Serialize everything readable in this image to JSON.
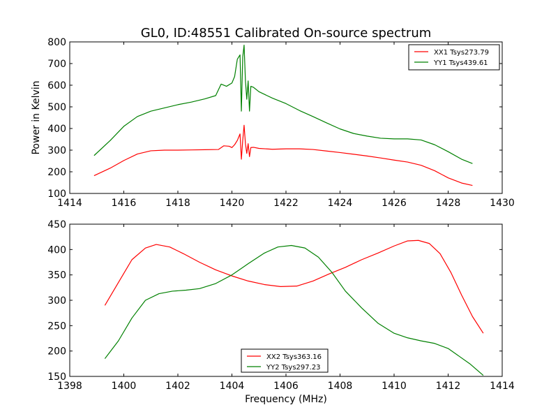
{
  "figure": {
    "title": "GL0, ID:48551 Calibrated On-source spectrum"
  },
  "chart_data": [
    {
      "type": "line",
      "title": "GL0, ID:48551 Calibrated On-source spectrum",
      "xlabel": "",
      "ylabel": "Power in Kelvin",
      "xlim": [
        1414,
        1430
      ],
      "ylim": [
        100,
        800
      ],
      "xticks": [
        1414,
        1416,
        1418,
        1420,
        1422,
        1424,
        1426,
        1428,
        1430
      ],
      "yticks": [
        100,
        200,
        300,
        400,
        500,
        600,
        700,
        800
      ],
      "legend_position": "top-right",
      "grid": false,
      "series": [
        {
          "name": "XX1 Tsys273.79",
          "color": "#ff0000",
          "x": [
            1414.9,
            1415.5,
            1416.0,
            1416.5,
            1417.0,
            1417.5,
            1418.0,
            1418.5,
            1419.0,
            1419.5,
            1419.7,
            1419.9,
            1420.0,
            1420.1,
            1420.2,
            1420.3,
            1420.35,
            1420.4,
            1420.45,
            1420.5,
            1420.55,
            1420.6,
            1420.65,
            1420.7,
            1420.8,
            1421.0,
            1421.5,
            1422.0,
            1422.5,
            1423.0,
            1423.5,
            1424.0,
            1424.5,
            1425.0,
            1425.5,
            1426.0,
            1426.5,
            1427.0,
            1427.5,
            1428.0,
            1428.5,
            1428.9
          ],
          "values": [
            182,
            217,
            252,
            282,
            297,
            300,
            300,
            301,
            302,
            303,
            320,
            318,
            312,
            325,
            345,
            375,
            258,
            345,
            415,
            330,
            285,
            330,
            270,
            312,
            313,
            308,
            304,
            306,
            306,
            303,
            296,
            289,
            281,
            273,
            264,
            254,
            245,
            230,
            205,
            172,
            148,
            137
          ]
        },
        {
          "name": "YY1 Tsys439.61",
          "color": "#008000",
          "x": [
            1414.9,
            1415.5,
            1416.0,
            1416.5,
            1417.0,
            1417.5,
            1418.0,
            1418.5,
            1419.0,
            1419.4,
            1419.6,
            1419.8,
            1420.0,
            1420.1,
            1420.2,
            1420.3,
            1420.35,
            1420.4,
            1420.45,
            1420.5,
            1420.55,
            1420.6,
            1420.65,
            1420.7,
            1420.8,
            1421.0,
            1421.5,
            1422.0,
            1422.5,
            1423.0,
            1423.5,
            1424.0,
            1424.5,
            1425.0,
            1425.5,
            1426.0,
            1426.5,
            1427.0,
            1427.5,
            1428.0,
            1428.5,
            1428.9
          ],
          "values": [
            275,
            345,
            410,
            455,
            480,
            495,
            510,
            522,
            537,
            552,
            605,
            595,
            610,
            640,
            720,
            740,
            480,
            730,
            785,
            620,
            535,
            620,
            480,
            595,
            590,
            570,
            540,
            515,
            483,
            455,
            426,
            398,
            377,
            365,
            355,
            352,
            352,
            347,
            325,
            293,
            258,
            238
          ]
        }
      ]
    },
    {
      "type": "line",
      "xlabel": "Frequency (MHz)",
      "ylabel": "",
      "xlim": [
        1398,
        1414
      ],
      "ylim": [
        150,
        450
      ],
      "xticks": [
        1398,
        1400,
        1402,
        1404,
        1406,
        1408,
        1410,
        1412,
        1414
      ],
      "yticks": [
        150,
        200,
        250,
        300,
        350,
        400,
        450
      ],
      "legend_position": "bottom-center",
      "grid": false,
      "series": [
        {
          "name": "XX2 Tsys363.16",
          "color": "#ff0000",
          "x": [
            1399.3,
            1399.8,
            1400.3,
            1400.8,
            1401.2,
            1401.7,
            1402.2,
            1402.8,
            1403.4,
            1404.0,
            1404.6,
            1405.2,
            1405.8,
            1406.4,
            1407.0,
            1407.6,
            1408.2,
            1408.8,
            1409.4,
            1410.0,
            1410.5,
            1410.9,
            1411.3,
            1411.7,
            1412.1,
            1412.5,
            1412.9,
            1413.3
          ],
          "values": [
            290,
            335,
            380,
            403,
            410,
            405,
            392,
            375,
            360,
            348,
            338,
            331,
            327,
            328,
            338,
            352,
            365,
            380,
            393,
            407,
            417,
            418,
            412,
            392,
            355,
            310,
            268,
            235
          ]
        },
        {
          "name": "YY2 Tsys297.23",
          "color": "#008000",
          "x": [
            1399.3,
            1399.8,
            1400.3,
            1400.8,
            1401.3,
            1401.8,
            1402.3,
            1402.8,
            1403.4,
            1404.0,
            1404.6,
            1405.2,
            1405.7,
            1406.2,
            1406.7,
            1407.2,
            1407.7,
            1408.2,
            1408.8,
            1409.4,
            1410.0,
            1410.5,
            1411.0,
            1411.5,
            1412.0,
            1412.4,
            1412.8,
            1413.3
          ],
          "values": [
            185,
            220,
            265,
            300,
            313,
            318,
            320,
            323,
            333,
            350,
            372,
            393,
            405,
            408,
            403,
            385,
            355,
            318,
            285,
            255,
            235,
            226,
            220,
            215,
            205,
            190,
            175,
            152
          ]
        }
      ]
    }
  ]
}
